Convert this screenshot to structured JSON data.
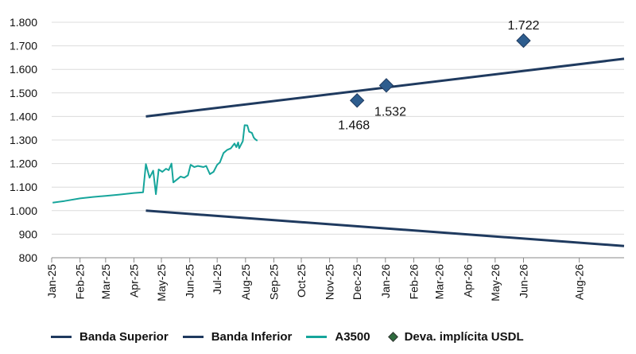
{
  "chart_data": {
    "type": "line",
    "title": "",
    "xlabel": "",
    "ylabel": "",
    "ylim": [
      800,
      1800
    ],
    "y_ticks": [
      "800",
      "900",
      "1.000",
      "1.100",
      "1.200",
      "1.300",
      "1.400",
      "1.500",
      "1.600",
      "1.700",
      "1.800"
    ],
    "y_tick_values": [
      800,
      900,
      1000,
      1100,
      1200,
      1300,
      1400,
      1500,
      1600,
      1700,
      1800
    ],
    "x_ticks": [
      "Jan-25",
      "Feb-25",
      "Mar-25",
      "Apr-25",
      "May-25",
      "Jun-25",
      "Jul-25",
      "Aug-25",
      "Sep-25",
      "Oct-25",
      "Nov-25",
      "Dec-25",
      "Jan-26",
      "Feb-26",
      "Mar-26",
      "Apr-26",
      "May-26",
      "Jun-26",
      "Aug-26"
    ],
    "grid": "horizontal",
    "legend_position": "bottom",
    "colors": {
      "banda": "#1f3a5f",
      "a3500": "#16a59b",
      "deva": "#2e5d8e"
    },
    "series": [
      {
        "name": "Banda Superior",
        "points": [
          [
            "2025-04-14",
            1400
          ],
          [
            "2026-09-19",
            1645
          ]
        ]
      },
      {
        "name": "Banda Inferior",
        "points": [
          [
            "2025-04-14",
            1000
          ],
          [
            "2026-09-19",
            850
          ]
        ]
      },
      {
        "name": "A3500",
        "points": [
          [
            "2025-01-02",
            1034
          ],
          [
            "2025-01-15",
            1041
          ],
          [
            "2025-02-01",
            1052
          ],
          [
            "2025-02-15",
            1058
          ],
          [
            "2025-03-01",
            1063
          ],
          [
            "2025-03-15",
            1068
          ],
          [
            "2025-04-01",
            1075
          ],
          [
            "2025-04-11",
            1078
          ],
          [
            "2025-04-14",
            1198
          ],
          [
            "2025-04-18",
            1140
          ],
          [
            "2025-04-22",
            1170
          ],
          [
            "2025-04-25",
            1070
          ],
          [
            "2025-04-28",
            1175
          ],
          [
            "2025-05-02",
            1165
          ],
          [
            "2025-05-06",
            1178
          ],
          [
            "2025-05-09",
            1172
          ],
          [
            "2025-05-12",
            1200
          ],
          [
            "2025-05-14",
            1120
          ],
          [
            "2025-05-19",
            1135
          ],
          [
            "2025-05-22",
            1145
          ],
          [
            "2025-05-26",
            1140
          ],
          [
            "2025-05-30",
            1150
          ],
          [
            "2025-06-02",
            1195
          ],
          [
            "2025-06-06",
            1185
          ],
          [
            "2025-06-10",
            1190
          ],
          [
            "2025-06-16",
            1185
          ],
          [
            "2025-06-19",
            1190
          ],
          [
            "2025-06-23",
            1155
          ],
          [
            "2025-06-27",
            1165
          ],
          [
            "2025-07-01",
            1195
          ],
          [
            "2025-07-04",
            1205
          ],
          [
            "2025-07-08",
            1245
          ],
          [
            "2025-07-12",
            1258
          ],
          [
            "2025-07-16",
            1265
          ],
          [
            "2025-07-18",
            1275
          ],
          [
            "2025-07-20",
            1285
          ],
          [
            "2025-07-22",
            1270
          ],
          [
            "2025-07-24",
            1290
          ],
          [
            "2025-07-25",
            1265
          ],
          [
            "2025-07-27",
            1280
          ],
          [
            "2025-07-29",
            1295
          ],
          [
            "2025-07-31",
            1363
          ],
          [
            "2025-08-03",
            1362
          ],
          [
            "2025-08-05",
            1335
          ],
          [
            "2025-08-08",
            1330
          ],
          [
            "2025-08-10",
            1310
          ],
          [
            "2025-08-12",
            1302
          ],
          [
            "2025-08-14",
            1297
          ]
        ]
      },
      {
        "name": "Deva. implícita USDL",
        "marker": "diamond",
        "points": [
          [
            "2025-12-01",
            1468,
            "1.468"
          ],
          [
            "2026-01-02",
            1532,
            "1.532"
          ],
          [
            "2026-06-01",
            1722,
            "1.722"
          ]
        ]
      }
    ]
  },
  "legend": [
    {
      "label": "Banda Superior",
      "kind": "line",
      "color": "#1f3a5f"
    },
    {
      "label": "Banda Inferior",
      "kind": "line",
      "color": "#1f3a5f"
    },
    {
      "label": "A3500",
      "kind": "line",
      "color": "#16a59b"
    },
    {
      "label": "Deva. implícita USDL",
      "kind": "diamond",
      "color": "#2e6b3e"
    }
  ]
}
